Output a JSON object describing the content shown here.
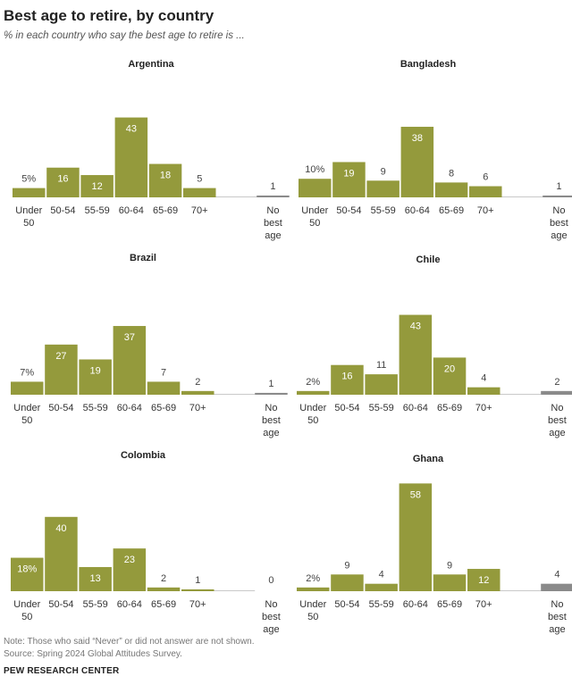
{
  "title": "Best age to retire, by country",
  "subtitle": "% in each country who say the best age to retire is ...",
  "note": "Note: Those who said “Never” or did not answer are not shown.",
  "source": "Source: Spring 2024 Global Attitudes Survey.",
  "brand": "PEW RESEARCH CENTER",
  "colors": {
    "bar": "#949A3C",
    "none_bar": "#8A8A8A",
    "baseline": "#C9C9C9"
  },
  "chart_data": [
    {
      "type": "bar",
      "title": "Argentina",
      "categories": [
        "Under 50",
        "50-54",
        "55-59",
        "60-64",
        "65-69",
        "70+",
        "No best age"
      ],
      "values": [
        5,
        16,
        12,
        43,
        18,
        5,
        1
      ],
      "labels": [
        "5%",
        "16",
        "12",
        "43",
        "18",
        "5",
        "1"
      ]
    },
    {
      "type": "bar",
      "title": "Bangladesh",
      "categories": [
        "Under 50",
        "50-54",
        "55-59",
        "60-64",
        "65-69",
        "70+",
        "No best age"
      ],
      "values": [
        10,
        19,
        9,
        38,
        8,
        6,
        1
      ],
      "labels": [
        "10%",
        "19",
        "9",
        "38",
        "8",
        "6",
        "1"
      ]
    },
    {
      "type": "bar",
      "title": "Brazil",
      "categories": [
        "Under 50",
        "50-54",
        "55-59",
        "60-64",
        "65-69",
        "70+",
        "No best age"
      ],
      "values": [
        7,
        27,
        19,
        37,
        7,
        2,
        1
      ],
      "labels": [
        "7%",
        "27",
        "19",
        "37",
        "7",
        "2",
        "1"
      ]
    },
    {
      "type": "bar",
      "title": "Chile",
      "categories": [
        "Under 50",
        "50-54",
        "55-59",
        "60-64",
        "65-69",
        "70+",
        "No best age"
      ],
      "values": [
        2,
        16,
        11,
        43,
        20,
        4,
        2
      ],
      "labels": [
        "2%",
        "16",
        "11",
        "43",
        "20",
        "4",
        "2"
      ]
    },
    {
      "type": "bar",
      "title": "Colombia",
      "categories": [
        "Under 50",
        "50-54",
        "55-59",
        "60-64",
        "65-69",
        "70+",
        "No best age"
      ],
      "values": [
        18,
        40,
        13,
        23,
        2,
        1,
        0
      ],
      "labels": [
        "18%",
        "40",
        "13",
        "23",
        "2",
        "1",
        "0"
      ]
    },
    {
      "type": "bar",
      "title": "Ghana",
      "categories": [
        "Under 50",
        "50-54",
        "55-59",
        "60-64",
        "65-69",
        "70+",
        "No best age"
      ],
      "values": [
        2,
        9,
        4,
        58,
        9,
        12,
        4
      ],
      "labels": [
        "2%",
        "9",
        "4",
        "58",
        "9",
        "12",
        "4"
      ]
    }
  ]
}
